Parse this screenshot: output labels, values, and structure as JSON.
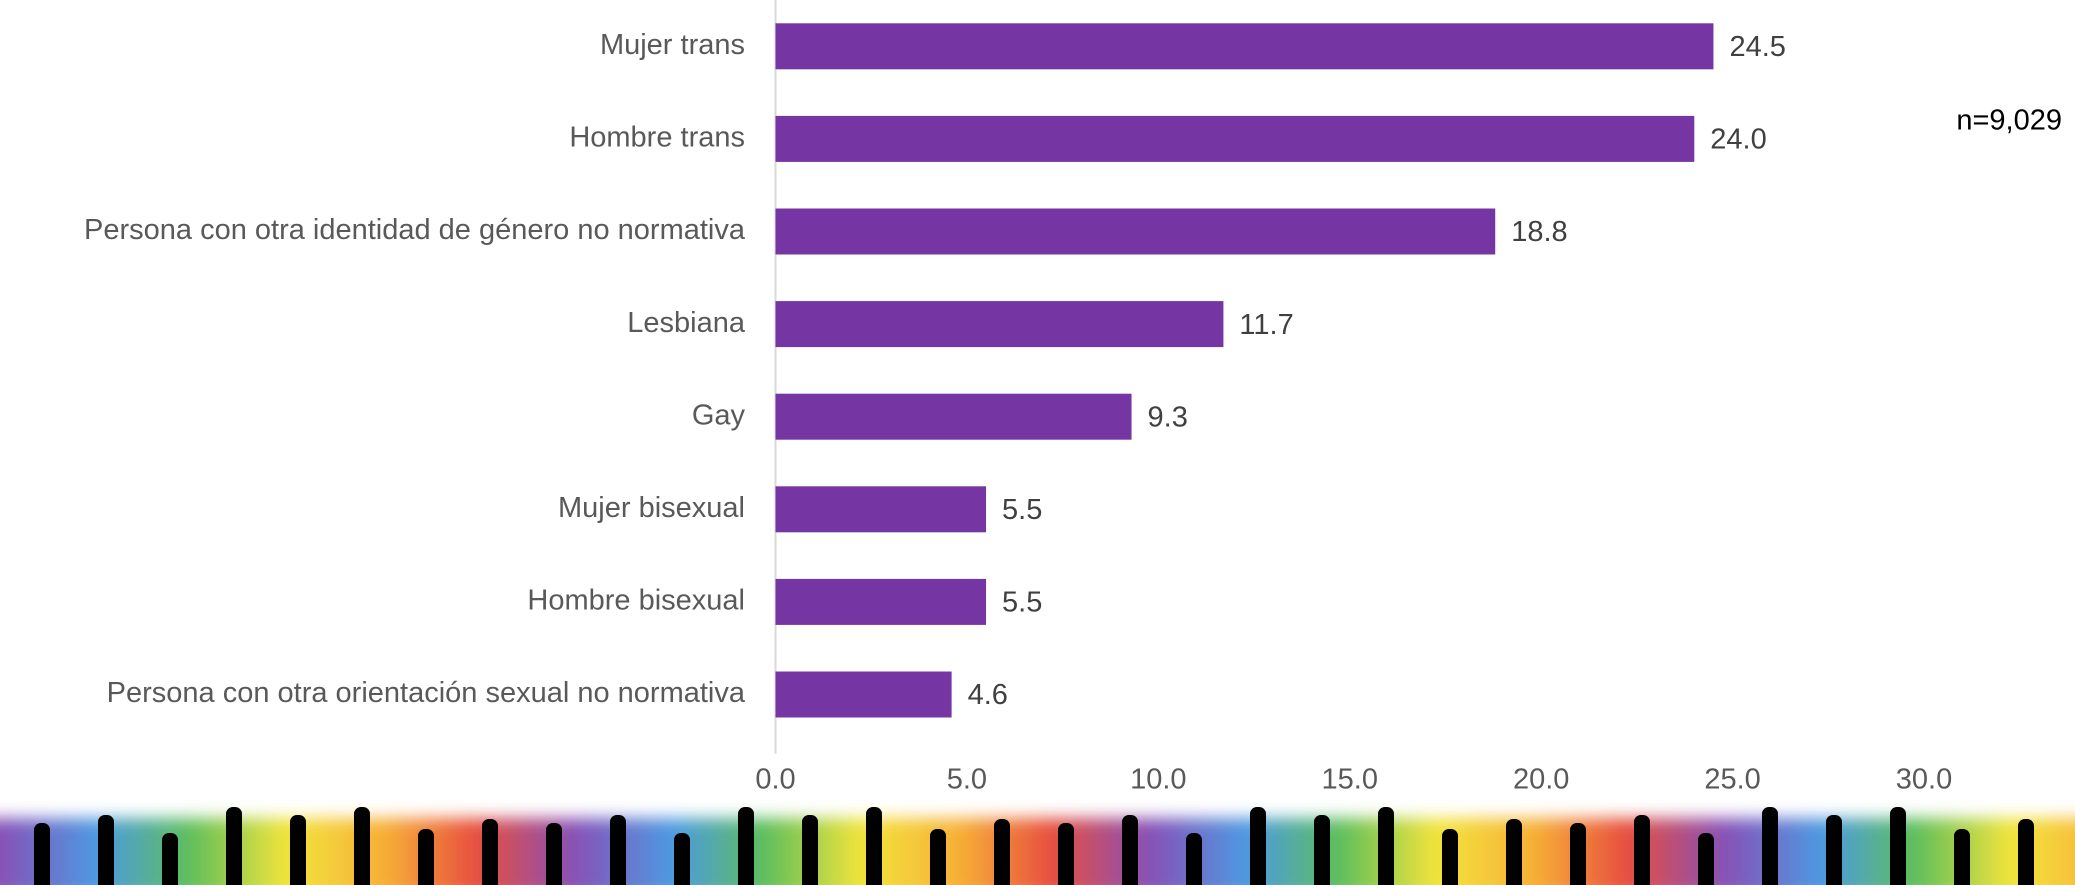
{
  "chart_data": {
    "type": "bar",
    "orientation": "horizontal",
    "categories": [
      "Mujer trans",
      "Hombre trans",
      "Persona con otra identidad de género no normativa",
      "Lesbiana",
      "Gay",
      "Mujer bisexual",
      "Hombre bisexual",
      "Persona con otra orientación sexual no normativa"
    ],
    "values": [
      24.5,
      24.0,
      18.8,
      11.7,
      9.3,
      5.5,
      5.5,
      4.6
    ],
    "value_labels": [
      "24.5",
      "24.0",
      "18.8",
      "11.7",
      "9.3",
      "5.5",
      "5.5",
      "4.6"
    ],
    "color": "#7535a2",
    "xlim": [
      0,
      30
    ],
    "xticks": [
      {
        "value": 0,
        "label": "0.0"
      },
      {
        "value": 5,
        "label": "5.0"
      },
      {
        "value": 10,
        "label": "10.0"
      },
      {
        "value": 15,
        "label": "15.0"
      },
      {
        "value": 20,
        "label": "20.0"
      },
      {
        "value": 25,
        "label": "25.0"
      },
      {
        "value": 30,
        "label": "30.0"
      }
    ],
    "grid": false,
    "annotation": "n=9,029"
  }
}
